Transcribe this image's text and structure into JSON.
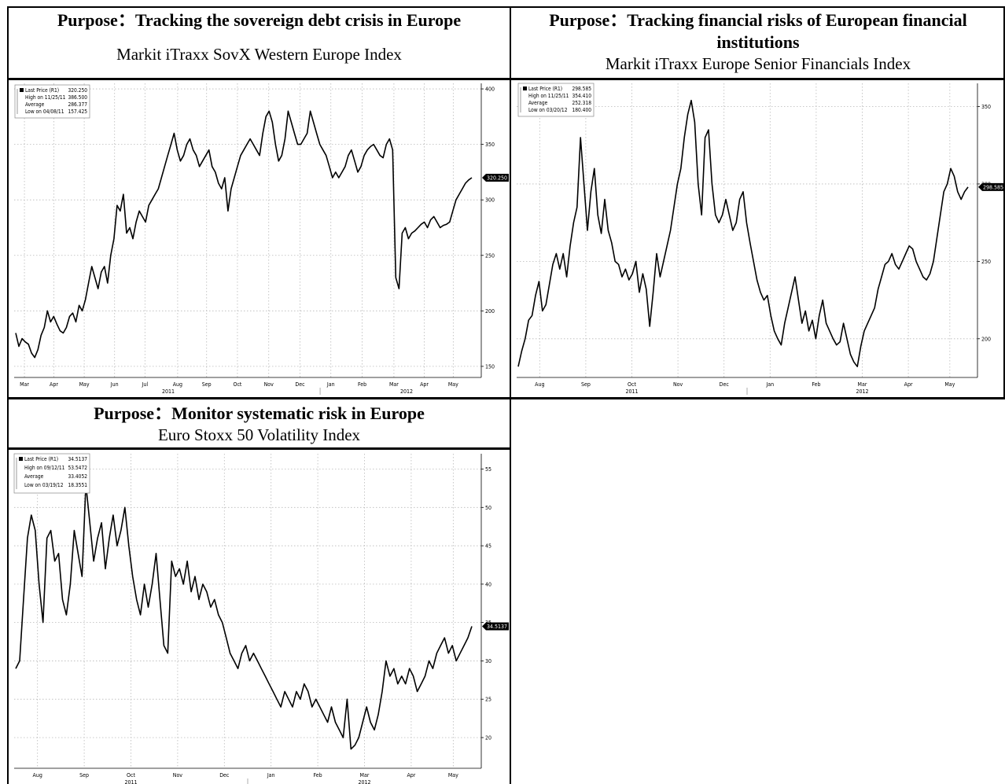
{
  "panels": [
    {
      "purpose": "Purpose：Tracking the sovereign debt crisis in Europe",
      "subtitle": "Markit iTraxx SovX Western Europe Index"
    },
    {
      "purpose": "Purpose：Tracking financial risks of European financial institutions",
      "subtitle": "Markit iTraxx Europe Senior Financials Index"
    },
    {
      "purpose": "Purpose：Monitor systematic risk in Europe",
      "subtitle": "Euro Stoxx 50 Volatility Index"
    }
  ],
  "chart_data": [
    {
      "type": "line",
      "title": "Markit iTraxx SovX Western Europe Index",
      "ylim": [
        140,
        405
      ],
      "yticks": [
        150,
        200,
        250,
        300,
        350,
        400
      ],
      "xticks": [
        "Mar",
        "Apr",
        "May",
        "Jun",
        "Jul",
        "Aug",
        "Sep",
        "Oct",
        "Nov",
        "Dec",
        "Jan",
        "Feb",
        "Mar",
        "Apr",
        "May"
      ],
      "year_labels": [
        "2011",
        "2012"
      ],
      "grid": true,
      "legend_position": "top-left",
      "legend": [
        {
          "label": "Last Price (R1)",
          "value": "320.250"
        },
        {
          "label": "High on 11/25/11",
          "value": "386.500"
        },
        {
          "label": "Average",
          "value": "286.377"
        },
        {
          "label": "Low on 04/08/11",
          "value": "157.425"
        }
      ],
      "last_label": "320.250",
      "series": [
        {
          "values": [
            180,
            168,
            175,
            172,
            170,
            162,
            158,
            165,
            178,
            185,
            200,
            190,
            195,
            188,
            182,
            180,
            185,
            195,
            198,
            190,
            205,
            200,
            210,
            225,
            240,
            230,
            220,
            235,
            240,
            225,
            250,
            265,
            295,
            290,
            305,
            270,
            275,
            265,
            280,
            290,
            285,
            280,
            295,
            300,
            305,
            310,
            320,
            330,
            340,
            350,
            360,
            345,
            335,
            340,
            350,
            355,
            345,
            340,
            330,
            335,
            340,
            345,
            330,
            325,
            315,
            310,
            320,
            290,
            310,
            320,
            330,
            340,
            345,
            350,
            355,
            350,
            345,
            340,
            360,
            375,
            380,
            370,
            350,
            335,
            340,
            355,
            380,
            370,
            360,
            350,
            350,
            355,
            360,
            380,
            370,
            360,
            350,
            345,
            340,
            330,
            320,
            325,
            320,
            325,
            330,
            340,
            345,
            335,
            325,
            330,
            340,
            345,
            348,
            350,
            345,
            340,
            338,
            350,
            355,
            345,
            230,
            220,
            270,
            275,
            265,
            270,
            272,
            275,
            278,
            280,
            275,
            282,
            285,
            280,
            275,
            277,
            278,
            280,
            290,
            300,
            305,
            310,
            315,
            318,
            320
          ]
        }
      ]
    },
    {
      "type": "line",
      "title": "Markit iTraxx Europe Senior Financials Index",
      "ylim": [
        175,
        365
      ],
      "yticks": [
        200,
        250,
        300,
        350
      ],
      "xticks": [
        "Aug",
        "Sep",
        "Oct",
        "Nov",
        "Dec",
        "Jan",
        "Feb",
        "Mar",
        "Apr",
        "May"
      ],
      "year_labels": [
        "2011",
        "2012"
      ],
      "grid": true,
      "legend_position": "top-left",
      "legend": [
        {
          "label": "Last Price (R1)",
          "value": "298.585"
        },
        {
          "label": "High on 11/25/11",
          "value": "354.410"
        },
        {
          "label": "Average",
          "value": "252.318"
        },
        {
          "label": "Low on 03/20/12",
          "value": "180.400"
        }
      ],
      "last_label": "298.585",
      "series": [
        {
          "values": [
            182,
            192,
            200,
            212,
            215,
            228,
            237,
            218,
            222,
            235,
            248,
            255,
            245,
            255,
            240,
            260,
            275,
            285,
            330,
            300,
            270,
            295,
            310,
            280,
            268,
            290,
            270,
            262,
            250,
            248,
            240,
            245,
            238,
            242,
            250,
            230,
            242,
            232,
            208,
            230,
            255,
            240,
            250,
            260,
            270,
            285,
            300,
            310,
            330,
            345,
            354,
            340,
            300,
            280,
            330,
            335,
            300,
            280,
            275,
            280,
            290,
            280,
            270,
            275,
            290,
            295,
            275,
            262,
            250,
            238,
            230,
            225,
            228,
            215,
            205,
            200,
            196,
            210,
            220,
            230,
            240,
            225,
            210,
            218,
            205,
            212,
            200,
            215,
            225,
            210,
            205,
            200,
            196,
            198,
            210,
            200,
            190,
            185,
            182,
            195,
            205,
            210,
            215,
            220,
            232,
            240,
            248,
            250,
            255,
            248,
            245,
            250,
            255,
            260,
            258,
            250,
            245,
            240,
            238,
            242,
            250,
            265,
            280,
            295,
            300,
            310,
            305,
            295,
            290,
            295,
            298
          ]
        }
      ]
    },
    {
      "type": "line",
      "title": "Euro Stoxx 50 Volatility Index",
      "ylim": [
        16,
        57
      ],
      "yticks": [
        20,
        25,
        30,
        35,
        40,
        45,
        50,
        55
      ],
      "xticks": [
        "Aug",
        "Sep",
        "Oct",
        "Nov",
        "Dec",
        "Jan",
        "Feb",
        "Mar",
        "Apr",
        "May"
      ],
      "year_labels": [
        "2011",
        "2012"
      ],
      "grid": true,
      "legend_position": "top-left",
      "legend": [
        {
          "label": "Last Price (R1)",
          "value": "34.5137"
        },
        {
          "label": "High on 09/12/11",
          "value": "53.5472"
        },
        {
          "label": "Average",
          "value": "33.4052"
        },
        {
          "label": "Low on 03/19/12",
          "value": "18.3551"
        }
      ],
      "last_label": "34.5137",
      "series": [
        {
          "values": [
            29,
            30,
            38,
            46,
            49,
            47,
            40,
            35,
            46,
            47,
            43,
            44,
            38,
            36,
            40,
            47,
            44,
            41,
            53,
            48,
            43,
            46,
            48,
            42,
            46,
            49,
            45,
            47,
            50,
            45,
            41,
            38,
            36,
            40,
            37,
            40,
            44,
            38,
            32,
            31,
            43,
            41,
            42,
            40,
            43,
            39,
            41,
            38,
            40,
            39,
            37,
            38,
            36,
            35,
            33,
            31,
            30,
            29,
            31,
            32,
            30,
            31,
            30,
            29,
            28,
            27,
            26,
            25,
            24,
            26,
            25,
            24,
            26,
            25,
            27,
            26,
            24,
            25,
            24,
            23,
            22,
            24,
            22,
            21,
            20,
            25,
            18.5,
            19,
            20,
            22,
            24,
            22,
            21,
            23,
            26,
            30,
            28,
            29,
            27,
            28,
            27,
            29,
            28,
            26,
            27,
            28,
            30,
            29,
            31,
            32,
            33,
            31,
            32,
            30,
            31,
            32,
            33,
            34.5
          ]
        }
      ]
    }
  ]
}
